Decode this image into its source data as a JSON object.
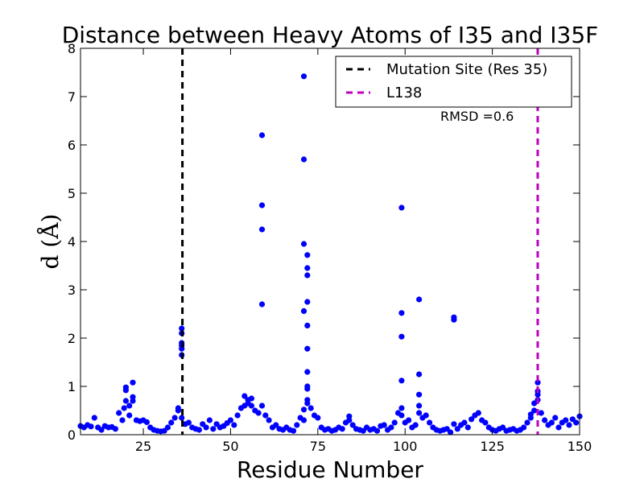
{
  "chart_data": {
    "type": "scatter",
    "title": "Distance between Heavy Atoms of I35 and I35F",
    "xlabel": "Residue Number",
    "ylabel": "d (Å)",
    "xlim": [
      7,
      150
    ],
    "ylim": [
      0,
      8
    ],
    "xticks": [
      25,
      50,
      75,
      100,
      125,
      150
    ],
    "yticks": [
      0,
      1,
      2,
      3,
      4,
      5,
      6,
      7,
      8
    ],
    "grid": false,
    "legend_position": "top-right",
    "annotation": "RMSD =0.6",
    "marker_color": "#0000ff",
    "vlines": [
      {
        "name": "Mutation Site (Res 35)",
        "x": 36.2,
        "color": "#000000"
      },
      {
        "name": "L138",
        "x": 138,
        "color": "#bf00bf"
      }
    ],
    "points": [
      [
        7,
        0.18
      ],
      [
        8,
        0.15
      ],
      [
        9,
        0.2
      ],
      [
        10,
        0.17
      ],
      [
        11,
        0.35
      ],
      [
        12,
        0.15
      ],
      [
        13,
        0.1
      ],
      [
        14,
        0.18
      ],
      [
        15,
        0.15
      ],
      [
        16,
        0.16
      ],
      [
        17,
        0.12
      ],
      [
        18,
        0.45
      ],
      [
        19,
        0.3
      ],
      [
        19.5,
        0.55
      ],
      [
        20,
        0.92
      ],
      [
        20,
        0.98
      ],
      [
        20,
        0.7
      ],
      [
        21,
        0.6
      ],
      [
        21,
        0.4
      ],
      [
        22,
        0.78
      ],
      [
        22,
        1.08
      ],
      [
        22,
        0.7
      ],
      [
        23,
        0.3
      ],
      [
        24,
        0.28
      ],
      [
        25,
        0.3
      ],
      [
        26,
        0.26
      ],
      [
        27,
        0.15
      ],
      [
        28,
        0.1
      ],
      [
        29,
        0.08
      ],
      [
        30,
        0.07
      ],
      [
        31,
        0.08
      ],
      [
        32,
        0.15
      ],
      [
        33,
        0.25
      ],
      [
        34,
        0.35
      ],
      [
        35,
        0.5
      ],
      [
        35,
        0.55
      ],
      [
        36,
        2.2
      ],
      [
        36,
        2.1
      ],
      [
        36,
        1.9
      ],
      [
        36,
        1.85
      ],
      [
        36,
        1.78
      ],
      [
        36,
        1.65
      ],
      [
        36,
        0.35
      ],
      [
        37,
        0.22
      ],
      [
        38,
        0.25
      ],
      [
        39,
        0.15
      ],
      [
        40,
        0.12
      ],
      [
        41,
        0.1
      ],
      [
        42,
        0.22
      ],
      [
        43,
        0.15
      ],
      [
        44,
        0.3
      ],
      [
        45,
        0.12
      ],
      [
        46,
        0.22
      ],
      [
        47,
        0.15
      ],
      [
        48,
        0.18
      ],
      [
        49,
        0.24
      ],
      [
        50,
        0.3
      ],
      [
        51,
        0.2
      ],
      [
        52,
        0.4
      ],
      [
        53,
        0.55
      ],
      [
        54,
        0.8
      ],
      [
        54,
        0.6
      ],
      [
        55,
        0.65
      ],
      [
        55,
        0.72
      ],
      [
        56,
        0.75
      ],
      [
        56,
        0.6
      ],
      [
        57,
        0.5
      ],
      [
        58,
        0.45
      ],
      [
        59,
        6.2
      ],
      [
        59,
        4.75
      ],
      [
        59,
        4.25
      ],
      [
        59,
        2.7
      ],
      [
        59,
        0.6
      ],
      [
        60,
        0.4
      ],
      [
        61,
        0.3
      ],
      [
        62,
        0.15
      ],
      [
        63,
        0.2
      ],
      [
        64,
        0.12
      ],
      [
        65,
        0.1
      ],
      [
        66,
        0.15
      ],
      [
        67,
        0.1
      ],
      [
        68,
        0.08
      ],
      [
        69,
        0.2
      ],
      [
        70,
        0.35
      ],
      [
        71,
        7.42
      ],
      [
        71,
        5.7
      ],
      [
        71,
        3.95
      ],
      [
        71,
        2.56
      ],
      [
        71,
        0.52
      ],
      [
        71,
        0.3
      ],
      [
        72,
        3.72
      ],
      [
        72,
        3.45
      ],
      [
        72,
        3.3
      ],
      [
        72,
        2.75
      ],
      [
        72,
        2.26
      ],
      [
        72,
        1.78
      ],
      [
        72,
        1.3
      ],
      [
        72,
        1.0
      ],
      [
        72,
        0.95
      ],
      [
        72,
        0.72
      ],
      [
        72,
        0.65
      ],
      [
        73,
        0.55
      ],
      [
        74,
        0.4
      ],
      [
        75,
        0.35
      ],
      [
        76,
        0.15
      ],
      [
        77,
        0.1
      ],
      [
        78,
        0.12
      ],
      [
        79,
        0.08
      ],
      [
        80,
        0.1
      ],
      [
        81,
        0.15
      ],
      [
        82,
        0.12
      ],
      [
        83,
        0.25
      ],
      [
        84,
        0.38
      ],
      [
        84,
        0.3
      ],
      [
        85,
        0.2
      ],
      [
        86,
        0.12
      ],
      [
        87,
        0.1
      ],
      [
        88,
        0.08
      ],
      [
        89,
        0.15
      ],
      [
        90,
        0.1
      ],
      [
        91,
        0.12
      ],
      [
        92,
        0.08
      ],
      [
        93,
        0.18
      ],
      [
        94,
        0.2
      ],
      [
        95,
        0.1
      ],
      [
        96,
        0.15
      ],
      [
        97,
        0.25
      ],
      [
        98,
        0.45
      ],
      [
        99,
        4.7
      ],
      [
        99,
        2.52
      ],
      [
        99,
        2.03
      ],
      [
        99,
        1.12
      ],
      [
        99,
        0.55
      ],
      [
        99,
        0.4
      ],
      [
        100,
        0.25
      ],
      [
        101,
        0.3
      ],
      [
        102,
        0.15
      ],
      [
        103,
        0.2
      ],
      [
        104,
        2.8
      ],
      [
        104,
        1.25
      ],
      [
        104,
        0.83
      ],
      [
        104,
        0.6
      ],
      [
        104,
        0.45
      ],
      [
        105,
        0.35
      ],
      [
        106,
        0.4
      ],
      [
        107,
        0.25
      ],
      [
        108,
        0.15
      ],
      [
        109,
        0.1
      ],
      [
        110,
        0.08
      ],
      [
        111,
        0.1
      ],
      [
        112,
        0.12
      ],
      [
        113,
        0.05
      ],
      [
        114,
        2.43
      ],
      [
        114,
        2.38
      ],
      [
        114,
        0.22
      ],
      [
        115,
        0.12
      ],
      [
        116,
        0.2
      ],
      [
        117,
        0.25
      ],
      [
        118,
        0.15
      ],
      [
        119,
        0.32
      ],
      [
        120,
        0.4
      ],
      [
        121,
        0.45
      ],
      [
        122,
        0.3
      ],
      [
        123,
        0.25
      ],
      [
        124,
        0.15
      ],
      [
        125,
        0.1
      ],
      [
        126,
        0.08
      ],
      [
        127,
        0.12
      ],
      [
        128,
        0.15
      ],
      [
        129,
        0.08
      ],
      [
        130,
        0.1
      ],
      [
        131,
        0.12
      ],
      [
        132,
        0.08
      ],
      [
        133,
        0.1
      ],
      [
        134,
        0.15
      ],
      [
        135,
        0.25
      ],
      [
        136,
        0.35
      ],
      [
        136,
        0.42
      ],
      [
        137,
        0.65
      ],
      [
        137,
        0.5
      ],
      [
        138,
        1.08
      ],
      [
        138,
        0.9
      ],
      [
        138,
        0.83
      ],
      [
        138,
        0.72
      ],
      [
        139,
        0.45
      ],
      [
        140,
        0.3
      ],
      [
        141,
        0.2
      ],
      [
        142,
        0.25
      ],
      [
        143,
        0.35
      ],
      [
        144,
        0.15
      ],
      [
        145,
        0.25
      ],
      [
        146,
        0.3
      ],
      [
        147,
        0.2
      ],
      [
        148,
        0.32
      ],
      [
        149,
        0.25
      ],
      [
        150,
        0.38
      ]
    ]
  }
}
